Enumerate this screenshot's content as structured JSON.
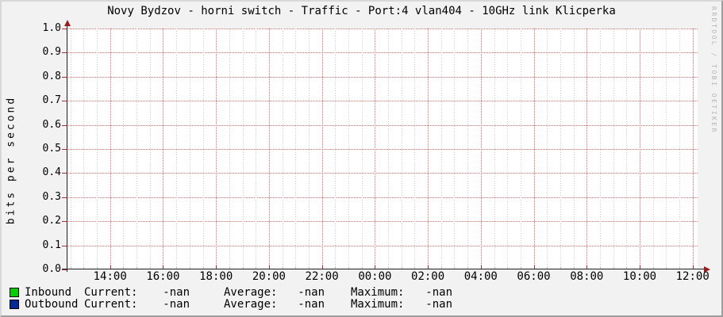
{
  "title": "Novy Bydzov - horni switch - Traffic - Port:4 vlan404 - 10GHz link Klicperka",
  "watermark": "RRDTOOL / TOBI OETIKER",
  "colors": {
    "background": "#f2f2f2",
    "canvas": "#ffffff",
    "border_light": "#d8d8d8",
    "border_dark": "#9e9e9e",
    "major_grid": "#d66a6a",
    "minor_grid": "#c9c9c9",
    "axis": "#1f1f1f",
    "arrow": "#991c1c",
    "tick": "#b03030",
    "inbound": "#00cf00",
    "outbound": "#002a97"
  },
  "chart_data": {
    "type": "line",
    "title": "Novy Bydzov - horni switch - Traffic - Port:4 vlan404 - 10GHz link Klicperka",
    "xlabel": "",
    "ylabel": "bits per second",
    "ylim": [
      0.0,
      1.0
    ],
    "y_ticks": [
      "1.0",
      "0.9",
      "0.8",
      "0.7",
      "0.6",
      "0.5",
      "0.4",
      "0.3",
      "0.2",
      "0.1",
      "0.0"
    ],
    "x_ticks": [
      "14:00",
      "16:00",
      "18:00",
      "20:00",
      "22:00",
      "00:00",
      "02:00",
      "04:00",
      "06:00",
      "08:00",
      "10:00",
      "12:00"
    ],
    "grid": true,
    "legend_position": "bottom",
    "series": [
      {
        "name": "Inbound",
        "color": "#00cf00",
        "values": []
      },
      {
        "name": "Outbound",
        "color": "#002a97",
        "values": []
      }
    ]
  },
  "legend": {
    "rows": [
      {
        "label": "Inbound",
        "current_label": "Current:",
        "current": "-nan",
        "average_label": "Average:",
        "average": "-nan",
        "maximum_label": "Maximum:",
        "maximum": "-nan"
      },
      {
        "label": "Outbound",
        "current_label": "Current:",
        "current": "-nan",
        "average_label": "Average:",
        "average": "-nan",
        "maximum_label": "Maximum:",
        "maximum": "-nan"
      }
    ]
  }
}
